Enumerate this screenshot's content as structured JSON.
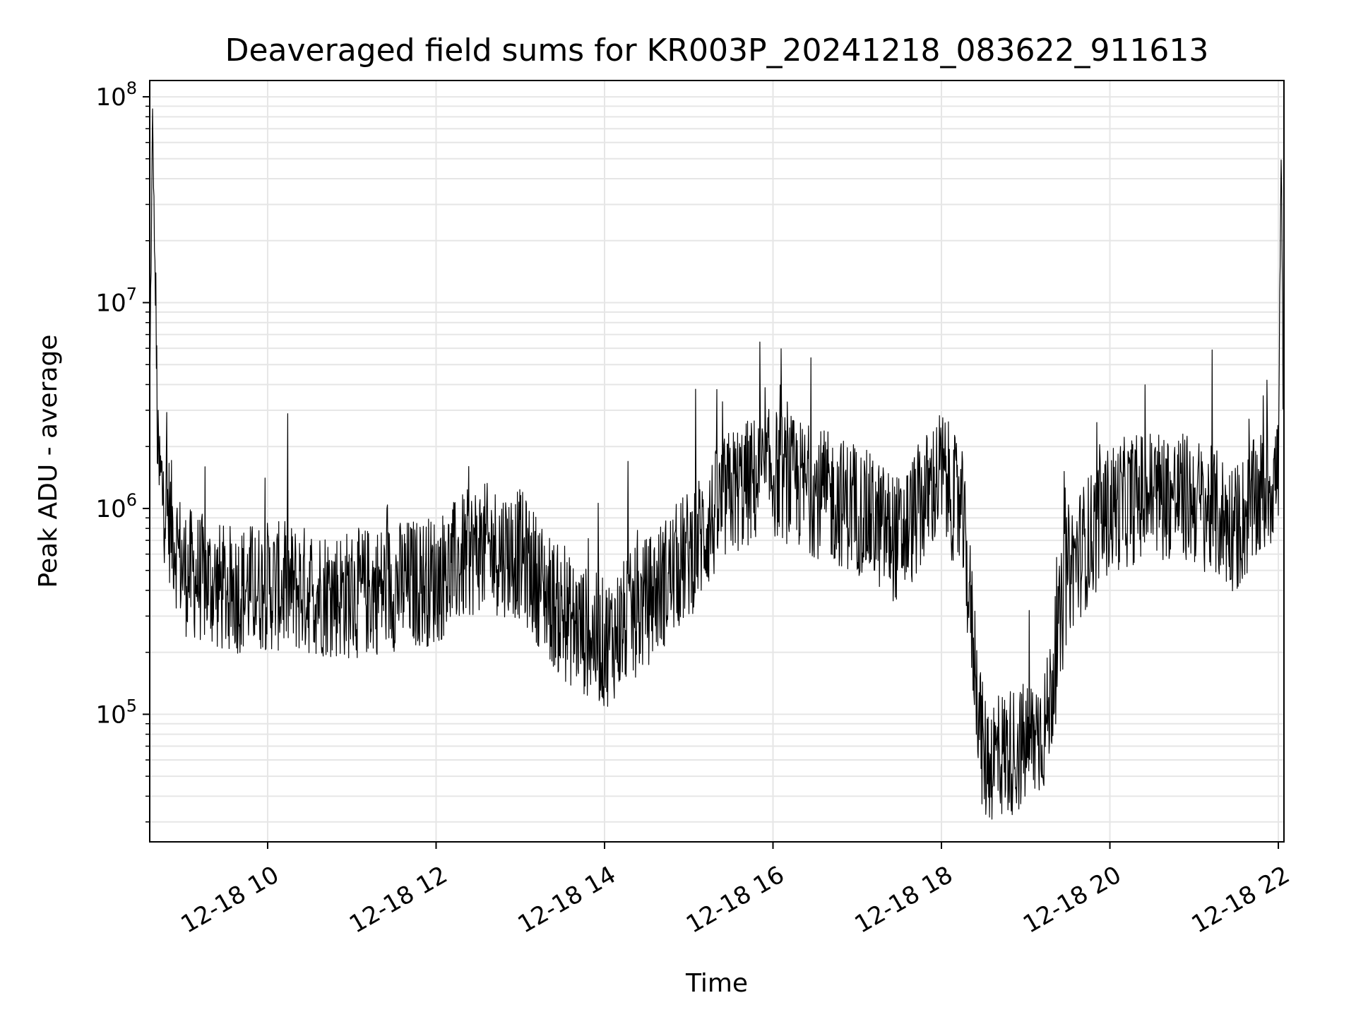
{
  "chart_data": {
    "type": "line",
    "title": "Deaveraged field sums for KR003P_20241218_083622_911613",
    "xlabel": "Time",
    "ylabel": "Peak ADU - average",
    "y_scale": "log",
    "x_range": [
      "12-18 08:36",
      "12-18 22:04"
    ],
    "ylim": [
      24000,
      120000000
    ],
    "grid": "on",
    "line_color": "#000000",
    "grid_color": "#e6e6e6",
    "x_ticks": [
      {
        "time": "12-18 10:00",
        "label": "12-18 10"
      },
      {
        "time": "12-18 12:00",
        "label": "12-18 12"
      },
      {
        "time": "12-18 14:00",
        "label": "12-18 14"
      },
      {
        "time": "12-18 16:00",
        "label": "12-18 16"
      },
      {
        "time": "12-18 18:00",
        "label": "12-18 18"
      },
      {
        "time": "12-18 20:00",
        "label": "12-18 20"
      },
      {
        "time": "12-18 22:00",
        "label": "12-18 22"
      }
    ],
    "y_ticks": [
      {
        "value": 100000,
        "label_base": "10",
        "label_exp": "5"
      },
      {
        "value": 1000000,
        "label_base": "10",
        "label_exp": "6"
      },
      {
        "value": 10000000,
        "label_base": "10",
        "label_exp": "7"
      },
      {
        "value": 100000000,
        "label_base": "10",
        "label_exp": "8"
      }
    ],
    "series": [
      {
        "x": [
          "12-18 08:36",
          "12-18 08:38",
          "12-18 08:42",
          "12-18 08:50",
          "12-18 09:00",
          "12-18 09:15",
          "12-18 09:30",
          "12-18 10:00",
          "12-18 10:30",
          "12-18 11:00",
          "12-18 11:30",
          "12-18 12:00",
          "12-18 12:30",
          "12-18 13:00",
          "12-18 13:30",
          "12-18 14:00",
          "12-18 14:30",
          "12-18 15:00",
          "12-18 15:30",
          "12-18 16:00",
          "12-18 16:30",
          "12-18 17:00",
          "12-18 17:30",
          "12-18 18:00",
          "12-18 18:15",
          "12-18 18:30",
          "12-18 19:00",
          "12-18 19:15",
          "12-18 19:30",
          "12-18 20:00",
          "12-18 20:30",
          "12-18 21:00",
          "12-18 21:30",
          "12-18 22:00",
          "12-18 22:02",
          "12-18 22:04"
        ],
        "values": [
          3000000,
          80000000,
          1500000,
          900000,
          500000,
          450000,
          400000,
          420000,
          400000,
          380000,
          420000,
          450000,
          650000,
          600000,
          300000,
          220000,
          350000,
          600000,
          1200000,
          1500000,
          1200000,
          1000000,
          700000,
          1500000,
          900000,
          60000,
          70000,
          90000,
          500000,
          1000000,
          1200000,
          1100000,
          800000,
          1500000,
          50000000,
          2000000
        ]
      }
    ]
  }
}
